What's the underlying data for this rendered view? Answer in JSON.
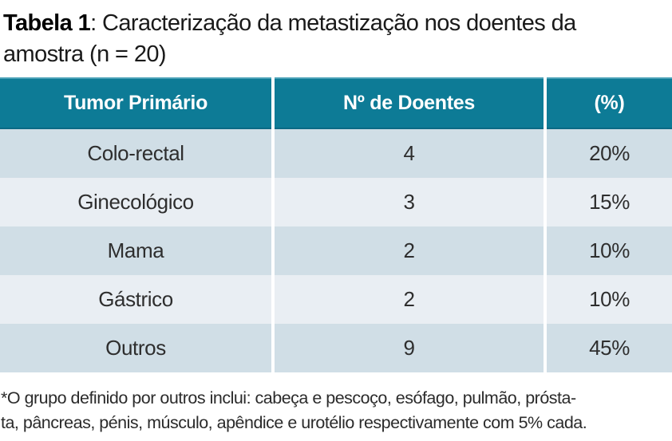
{
  "title": {
    "label_bold": "Tabela 1",
    "label_rest": ": Caracterização da metastização nos doentes da",
    "line2": "amostra (n = 20)"
  },
  "table": {
    "headers": [
      "Tumor Primário",
      "Nº de Doentes",
      "(%)"
    ],
    "rows": [
      {
        "cells": [
          "Colo-rectal",
          "4",
          "20%"
        ]
      },
      {
        "cells": [
          "Ginecológico",
          "3",
          "15%"
        ]
      },
      {
        "cells": [
          "Mama",
          "2",
          "10%"
        ]
      },
      {
        "cells": [
          "Gástrico",
          "2",
          "10%"
        ]
      },
      {
        "cells": [
          "Outros",
          "9",
          "45%"
        ]
      }
    ],
    "colors": {
      "header_bg": "#0d7b96",
      "header_text": "#ffffff",
      "row_dark": "#d0dee6",
      "row_light": "#e9eef3",
      "separator": "#ffffff",
      "body_text": "#2e2e2e"
    }
  },
  "footnote": {
    "line1": "*O grupo definido por outros inclui: cabeça e pescoço, esófago, pulmão, prósta-",
    "line2": "ta, pâncreas, pénis, músculo, apêndice e urotélio respectivamente com 5% cada."
  }
}
